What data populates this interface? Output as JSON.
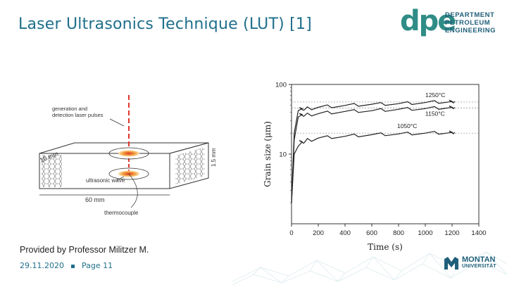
{
  "slide": {
    "title": "Laser Ultrasonics Technique (LUT) [1]",
    "caption": "Provided by Professor Militzer M.",
    "date": "29.11.2020",
    "page": "Page 11"
  },
  "logo": {
    "dpe": "dpe",
    "line1": "DEPARTMENT",
    "line2": "PETROLEUM",
    "line3": "ENGINEERING"
  },
  "montan": {
    "line1": "MONTAN",
    "line2": "UNIVERSITÄT"
  },
  "diagram": {
    "laser_label_1": "generation and",
    "laser_label_2": "detection laser pulses",
    "depth_label": "10 mm",
    "thickness_label": "1.5 mm",
    "wave_label": "ultrasonic wave",
    "width_label": "60 mm",
    "thermo_label": "thermocouple"
  },
  "colors": {
    "title": "#1f6f8b",
    "logo": "#2f8c86",
    "laser": "#e0362c"
  },
  "chart_data": {
    "type": "line",
    "xlabel": "Time (s)",
    "ylabel": "Grain size (μm)",
    "xlim": [
      0,
      1400
    ],
    "ylim": [
      1,
      100
    ],
    "yscale": "log",
    "x_ticks": [
      "0",
      "200",
      "400",
      "600",
      "800",
      "1000",
      "1200",
      "1400"
    ],
    "y_ticks": [
      "10",
      "100"
    ],
    "series": [
      {
        "name": "1250°C",
        "x": [
          0,
          20,
          50,
          80,
          100,
          200,
          400,
          600,
          800,
          1000,
          1200,
          1220
        ],
        "y": [
          2,
          20,
          42,
          45,
          44,
          47,
          50,
          52,
          53,
          55,
          57,
          57
        ]
      },
      {
        "name": "1150°C",
        "x": [
          0,
          20,
          50,
          80,
          100,
          200,
          400,
          600,
          800,
          1000,
          1200,
          1220
        ],
        "y": [
          2,
          16,
          34,
          37,
          36,
          38,
          41,
          42,
          44,
          45,
          47,
          47
        ]
      },
      {
        "name": "1050°C",
        "x": [
          0,
          20,
          50,
          80,
          100,
          200,
          400,
          600,
          800,
          1000,
          1200,
          1220
        ],
        "y": [
          2,
          10,
          13,
          15,
          15,
          17,
          18,
          19,
          19.5,
          20,
          20.5,
          20.5
        ]
      }
    ],
    "reference_lines": [
      56,
      46,
      20
    ]
  }
}
